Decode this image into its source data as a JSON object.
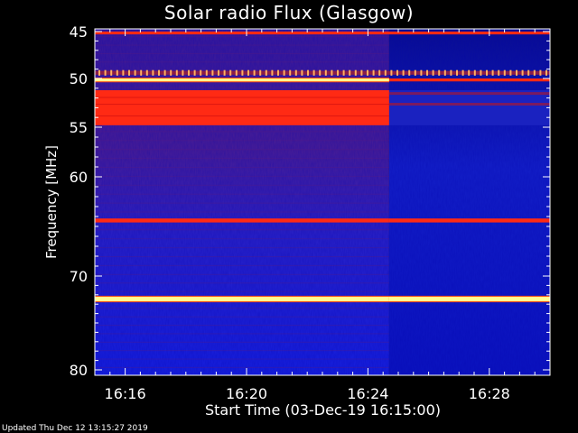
{
  "chart_data": {
    "type": "heatmap",
    "title": "Solar radio Flux (Glasgow)",
    "xlabel": "Start Time (03-Dec-19 16:15:00)",
    "ylabel": "Frequency [MHz]",
    "x_ticks": [
      "16:16",
      "16:20",
      "16:24",
      "16:28"
    ],
    "x_tick_minutes": [
      1,
      5,
      9,
      13
    ],
    "x_range_minutes": [
      0,
      15
    ],
    "y_ticks": [
      45,
      50,
      55,
      60,
      70,
      80
    ],
    "y_range_mhz": [
      45,
      80
    ],
    "colormap": [
      "#0000cc",
      "#4444ff",
      "#7a2aa0",
      "#cc1010",
      "#ff3020",
      "#ffff66",
      "#ffffff"
    ],
    "event": {
      "type": "drop in background intensity",
      "time_minutes": 9.7
    },
    "bands": [
      {
        "f_low": 45.0,
        "f_high": 45.3,
        "before": "intense",
        "after": "intense"
      },
      {
        "f_low": 49.2,
        "f_high": 49.6,
        "before": "spiky",
        "after": "spiky"
      },
      {
        "f_low": 50.0,
        "f_high": 50.3,
        "before": "very-intense",
        "after": "intense"
      },
      {
        "f_low": 51.2,
        "f_high": 54.8,
        "before": "intense",
        "after": "weak"
      },
      {
        "f_low": 64.2,
        "f_high": 64.6,
        "before": "intense",
        "after": "intense"
      },
      {
        "f_low": 72.2,
        "f_high": 72.7,
        "before": "very-intense",
        "after": "very-intense"
      }
    ]
  },
  "footer": {
    "updated": "Updated Thu Dec 12 13:15:27 2019"
  }
}
